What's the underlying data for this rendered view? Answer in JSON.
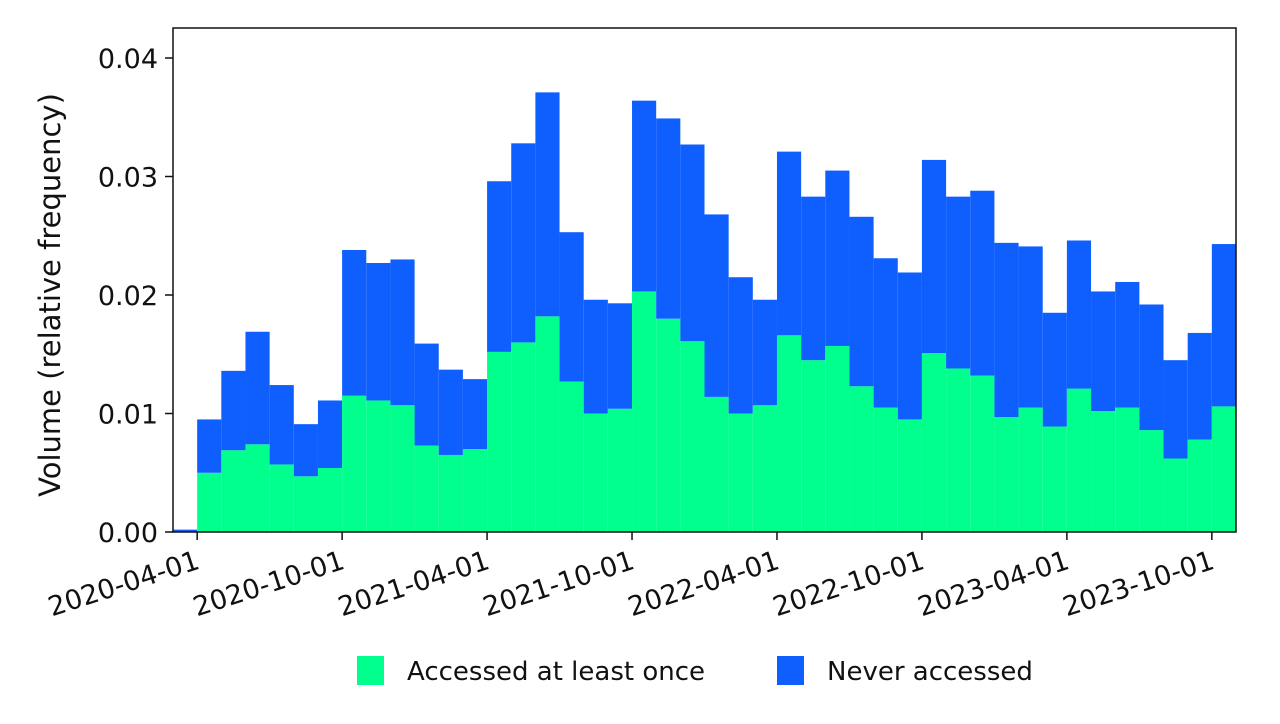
{
  "chart_data": {
    "type": "bar",
    "stacked": true,
    "title": "",
    "xlabel": "",
    "ylabel": "Volume (relative frequency)",
    "ylim": [
      0,
      0.042
    ],
    "yticks": [
      "0.00",
      "0.01",
      "0.02",
      "0.03",
      "0.04"
    ],
    "ytick_values": [
      0,
      0.01,
      0.02,
      0.03,
      0.04
    ],
    "xticks": [
      "2020-04-01",
      "2020-10-01",
      "2021-04-01",
      "2021-10-01",
      "2022-04-01",
      "2022-10-01",
      "2023-04-01",
      "2023-10-01"
    ],
    "grid": false,
    "legend_position": "bottom",
    "categories": [
      "2020-03-01",
      "2020-04-01",
      "2020-05-01",
      "2020-06-01",
      "2020-07-01",
      "2020-08-01",
      "2020-09-01",
      "2020-10-01",
      "2020-11-01",
      "2020-12-01",
      "2021-01-01",
      "2021-02-01",
      "2021-03-01",
      "2021-04-01",
      "2021-05-01",
      "2021-06-01",
      "2021-07-01",
      "2021-08-01",
      "2021-09-01",
      "2021-10-01",
      "2021-11-01",
      "2021-12-01",
      "2022-01-01",
      "2022-02-01",
      "2022-03-01",
      "2022-04-01",
      "2022-05-01",
      "2022-06-01",
      "2022-07-01",
      "2022-08-01",
      "2022-09-01",
      "2022-10-01",
      "2022-11-01",
      "2022-12-01",
      "2023-01-01",
      "2023-02-01",
      "2023-03-01",
      "2023-04-01",
      "2023-05-01",
      "2023-06-01",
      "2023-07-01",
      "2023-08-01",
      "2023-09-01",
      "2023-10-01"
    ],
    "series": [
      {
        "name": "Accessed at least once",
        "color": "#00FF8C",
        "values": [
          0,
          0.005,
          0.0069,
          0.0074,
          0.0057,
          0.0047,
          0.0054,
          0.0115,
          0.0111,
          0.0107,
          0.0073,
          0.0065,
          0.007,
          0.0152,
          0.016,
          0.0182,
          0.0127,
          0.01,
          0.0104,
          0.0203,
          0.018,
          0.0161,
          0.0114,
          0.01,
          0.0107,
          0.0166,
          0.0145,
          0.0157,
          0.0123,
          0.0105,
          0.0095,
          0.0151,
          0.0138,
          0.0132,
          0.0097,
          0.0105,
          0.0089,
          0.0121,
          0.0102,
          0.0105,
          0.0086,
          0.0062,
          0.0078,
          0.0106
        ]
      },
      {
        "name": "Never accessed",
        "color": "#0F5FFF",
        "values": [
          0.0002,
          0.0045,
          0.0067,
          0.0095,
          0.0067,
          0.0044,
          0.0057,
          0.0123,
          0.0116,
          0.0123,
          0.0086,
          0.0072,
          0.0059,
          0.0144,
          0.0168,
          0.0189,
          0.0126,
          0.0096,
          0.0089,
          0.0161,
          0.0169,
          0.0166,
          0.0154,
          0.0115,
          0.0089,
          0.0155,
          0.0138,
          0.0148,
          0.0143,
          0.0126,
          0.0124,
          0.0163,
          0.0145,
          0.0156,
          0.0147,
          0.0136,
          0.0096,
          0.0125,
          0.0101,
          0.0106,
          0.0106,
          0.0083,
          0.009,
          0.0137
        ]
      }
    ]
  }
}
